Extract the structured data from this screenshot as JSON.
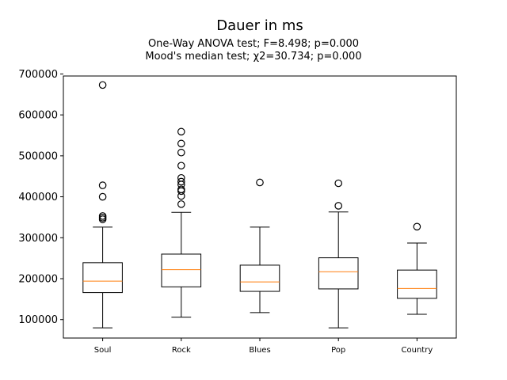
{
  "chart_data": {
    "type": "box",
    "title": "Dauer in ms",
    "subtitle_lines": [
      "One-Way ANOVA test; F=8.498; p=0.000",
      "Mood's median test; χ2=30.734; p=0.000"
    ],
    "xlabel": "",
    "ylabel": "",
    "ylim": [
      55000,
      695000
    ],
    "yticks": [
      100000,
      200000,
      300000,
      400000,
      500000,
      600000,
      700000
    ],
    "ytick_labels": [
      "100000",
      "200000",
      "300000",
      "400000",
      "500000",
      "600000",
      "700000"
    ],
    "grid": false,
    "colors": {
      "box": "#000000",
      "median": "#ff7f0e",
      "flier": "#000000"
    },
    "categories": [
      "Soul",
      "Rock",
      "Blues",
      "Pop",
      "Country"
    ],
    "boxes": [
      {
        "category": "Soul",
        "whisker_low": 80000,
        "q1": 166000,
        "median": 194000,
        "q3": 239000,
        "whisker_high": 326000,
        "fliers": [
          345000,
          349000,
          353000,
          400000,
          428000,
          673000
        ]
      },
      {
        "category": "Rock",
        "whisker_low": 106000,
        "q1": 180000,
        "median": 222000,
        "q3": 260000,
        "whisker_high": 362000,
        "fliers": [
          382000,
          402000,
          414000,
          418000,
          430000,
          437000,
          446000,
          476000,
          508000,
          530000,
          559000
        ]
      },
      {
        "category": "Blues",
        "whisker_low": 117000,
        "q1": 169000,
        "median": 192000,
        "q3": 233000,
        "whisker_high": 326000,
        "fliers": [
          435000
        ]
      },
      {
        "category": "Pop",
        "whisker_low": 80000,
        "q1": 175000,
        "median": 217000,
        "q3": 251000,
        "whisker_high": 363000,
        "fliers": [
          378000,
          433000
        ]
      },
      {
        "category": "Country",
        "whisker_low": 113000,
        "q1": 152000,
        "median": 176000,
        "q3": 221000,
        "whisker_high": 287000,
        "fliers": [
          327000
        ]
      }
    ]
  }
}
